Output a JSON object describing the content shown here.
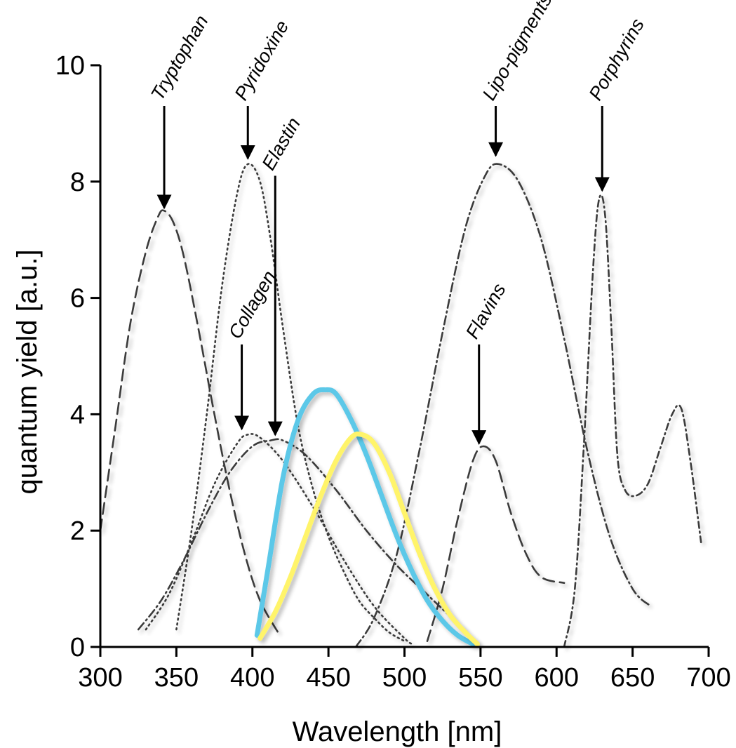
{
  "chart_data": {
    "type": "line",
    "title": "",
    "xlabel": "Wavelength [nm]",
    "ylabel": "quantum yield [a.u.]",
    "xlim": [
      300,
      700
    ],
    "ylim": [
      0,
      10
    ],
    "xticks": [
      "300",
      "350",
      "400",
      "450",
      "500",
      "550",
      "600",
      "650",
      "700"
    ],
    "yticks": [
      "0",
      "2",
      "4",
      "6",
      "8",
      "10"
    ],
    "grid": false,
    "legend": "none",
    "series": [
      {
        "name": "Tryptophan",
        "style": "dashed",
        "color": "#3a3a3a",
        "x": [
          300,
          310,
          320,
          330,
          338,
          342,
          348,
          355,
          365,
          375,
          385,
          395,
          405,
          418
        ],
        "y": [
          2.0,
          3.8,
          5.6,
          6.8,
          7.4,
          7.5,
          7.3,
          6.7,
          5.4,
          4.0,
          2.7,
          1.6,
          0.8,
          0.2
        ]
      },
      {
        "name": "Pyridoxine",
        "style": "dotted",
        "color": "#3a3a3a",
        "x": [
          350,
          360,
          370,
          380,
          390,
          397,
          405,
          412,
          420,
          430,
          440,
          450,
          460,
          470,
          480,
          490,
          500
        ],
        "y": [
          0.3,
          2.0,
          4.0,
          6.2,
          7.8,
          8.3,
          8.0,
          7.0,
          5.5,
          3.8,
          2.7,
          1.9,
          1.3,
          0.8,
          0.5,
          0.25,
          0.1
        ]
      },
      {
        "name": "Collagen",
        "style": "dotted",
        "color": "#3a3a3a",
        "x": [
          330,
          345,
          360,
          375,
          390,
          397,
          405,
          420,
          440,
          460,
          480,
          500,
          505
        ],
        "y": [
          0.3,
          0.9,
          1.8,
          2.8,
          3.5,
          3.65,
          3.6,
          3.2,
          2.4,
          1.5,
          0.7,
          0.15,
          0.05
        ]
      },
      {
        "name": "Elastin",
        "style": "dashdot",
        "color": "#3a3a3a",
        "x": [
          325,
          340,
          355,
          370,
          385,
          400,
          412,
          420,
          435,
          455,
          475,
          495,
          515,
          535,
          548
        ],
        "y": [
          0.3,
          0.8,
          1.5,
          2.3,
          3.0,
          3.45,
          3.55,
          3.55,
          3.3,
          2.7,
          2.0,
          1.4,
          0.9,
          0.4,
          0.05
        ]
      },
      {
        "name": "Lipo-pigments",
        "style": "dashdot",
        "color": "#3a3a3a",
        "x": [
          468,
          480,
          495,
          510,
          525,
          540,
          553,
          562,
          575,
          590,
          605,
          620,
          635,
          650,
          662
        ],
        "y": [
          0.0,
          0.5,
          1.6,
          3.4,
          5.4,
          7.2,
          8.1,
          8.3,
          8.0,
          7.0,
          5.3,
          3.4,
          1.9,
          1.0,
          0.7
        ]
      },
      {
        "name": "Flavins",
        "style": "dashed",
        "color": "#3a3a3a",
        "x": [
          515,
          525,
          535,
          545,
          552,
          560,
          570,
          580,
          590,
          605
        ],
        "y": [
          0.1,
          1.0,
          2.2,
          3.2,
          3.45,
          3.2,
          2.3,
          1.6,
          1.2,
          1.1
        ]
      },
      {
        "name": "Porphyrins",
        "style": "dashdot-fine",
        "color": "#3a3a3a",
        "x": [
          605,
          612,
          618,
          624,
          628,
          632,
          636,
          640,
          645,
          652,
          660,
          668,
          676,
          682,
          688,
          695
        ],
        "y": [
          0.0,
          1.0,
          3.5,
          6.5,
          7.7,
          7.4,
          5.5,
          3.3,
          2.7,
          2.6,
          2.8,
          3.4,
          4.0,
          4.1,
          3.2,
          1.8
        ]
      },
      {
        "name": "",
        "style": "solid",
        "color": "#5cc8e8",
        "x": [
          403,
          410,
          420,
          430,
          440,
          448,
          455,
          465,
          475,
          485,
          495,
          505,
          515,
          525,
          535,
          545
        ],
        "y": [
          0.2,
          1.3,
          2.9,
          3.9,
          4.35,
          4.42,
          4.35,
          3.9,
          3.3,
          2.6,
          1.9,
          1.3,
          0.8,
          0.45,
          0.2,
          0.05
        ]
      },
      {
        "name": "",
        "style": "solid",
        "color": "#fff46a",
        "x": [
          405,
          415,
          425,
          435,
          445,
          455,
          465,
          472,
          480,
          490,
          500,
          510,
          520,
          530,
          540,
          548
        ],
        "y": [
          0.15,
          0.6,
          1.2,
          1.9,
          2.6,
          3.2,
          3.6,
          3.65,
          3.5,
          3.0,
          2.3,
          1.6,
          1.0,
          0.55,
          0.25,
          0.05
        ]
      }
    ],
    "annotations": [
      {
        "text": "Tryptophan",
        "target_x": 342,
        "target_y": 7.5,
        "arrow_from_y": 9.3
      },
      {
        "text": "Pyridoxine",
        "target_x": 397,
        "target_y": 8.35,
        "arrow_from_y": 9.3
      },
      {
        "text": "Elastin",
        "target_x": 415,
        "target_y": 3.6,
        "arrow_from_y": 8.1
      },
      {
        "text": "Collagen",
        "target_x": 393,
        "target_y": 3.7,
        "arrow_from_y": 5.2
      },
      {
        "text": "Lipo-pigments",
        "target_x": 560,
        "target_y": 8.4,
        "arrow_from_y": 9.3
      },
      {
        "text": "Porphyrins",
        "target_x": 630,
        "target_y": 7.8,
        "arrow_from_y": 9.3
      },
      {
        "text": "Flavins",
        "target_x": 549,
        "target_y": 3.45,
        "arrow_from_y": 5.2
      }
    ]
  }
}
